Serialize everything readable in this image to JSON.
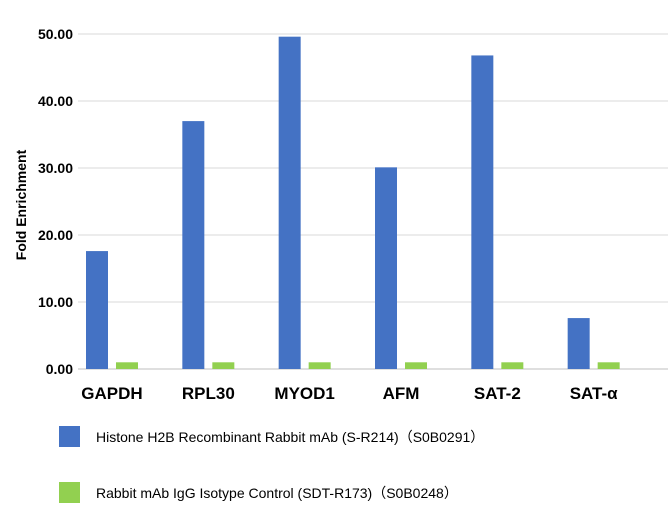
{
  "chart_data": {
    "type": "bar",
    "title": "",
    "xlabel": "",
    "ylabel": "Fold Enrichment",
    "ylim": [
      0,
      50
    ],
    "yticks": [
      "0.00",
      "10.00",
      "20.00",
      "30.00",
      "40.00",
      "50.00"
    ],
    "grid": true,
    "legend_position": "bottom",
    "categories": [
      "GAPDH",
      "RPL30",
      "MYOD1",
      "AFM",
      "SAT-2",
      "SAT-α"
    ],
    "series": [
      {
        "name": "Histone H2B Recombinant Rabbit mAb (S-R214)（S0B0291）",
        "color": "#4472C4",
        "values": [
          17.6,
          37.0,
          49.6,
          30.1,
          46.8,
          7.6
        ]
      },
      {
        "name": "Rabbit mAb IgG Isotype Control (SDT-R173)（S0B0248）",
        "color": "#92D050",
        "values": [
          1.0,
          1.0,
          1.0,
          1.0,
          1.0,
          1.0
        ]
      }
    ]
  }
}
